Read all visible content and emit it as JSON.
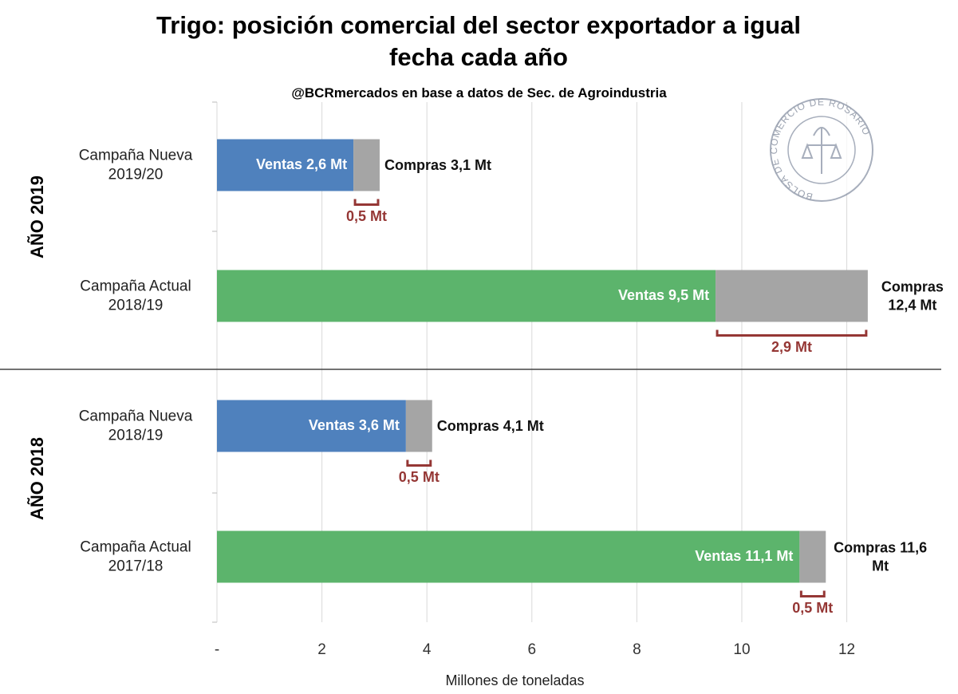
{
  "chart_data": {
    "type": "bar",
    "orientation": "horizontal",
    "stacked": true,
    "title": "Trigo: posición comercial del sector exportador a igual fecha cada año",
    "subtitle": "@BCRmercados en base a datos de Sec. de Agroindustria",
    "x_label": "Millones de toneladas",
    "groups": [
      "AÑO 2019",
      "AÑO 2018"
    ],
    "categories": [
      "Campaña Nueva 2019/20",
      "Campaña Actual 2018/19",
      "Campaña Nueva 2018/19",
      "Campaña Actual 2017/18"
    ],
    "series": [
      {
        "colors": [
          "#4f81bd",
          "#5cb46c",
          "#4f81bd",
          "#5cb46c"
        ],
        "values": [
          2.6,
          9.5,
          3.6,
          11.1
        ],
        "value_labels": [
          "Ventas 2,6 Mt",
          "Ventas 9,5 Mt",
          "Ventas 3,6 Mt",
          "Ventas 11,1 Mt"
        ]
      },
      {
        "color": "#a5a5a5",
        "bracket_color": "#953735",
        "values": [
          0.5,
          2.9,
          0.5,
          0.5
        ],
        "value_labels": [
          "0,5 Mt",
          "2,9 Mt",
          "0,5 Mt",
          "0,5 Mt"
        ]
      }
    ],
    "totals": [
      3.1,
      12.4,
      4.1,
      11.6
    ],
    "total_labels": [
      "Compras 3,1 Mt",
      "Compras 12,4 Mt",
      "Compras 4,1 Mt",
      "Compras 11,6 Mt"
    ],
    "xlim": [
      0,
      13.8
    ],
    "xticks": [
      {
        "value": 0,
        "label": "-"
      },
      2,
      4,
      6,
      8,
      10,
      12
    ],
    "grid": true,
    "logo_text": "BOLSA DE COMERCIO DE ROSARIO"
  }
}
